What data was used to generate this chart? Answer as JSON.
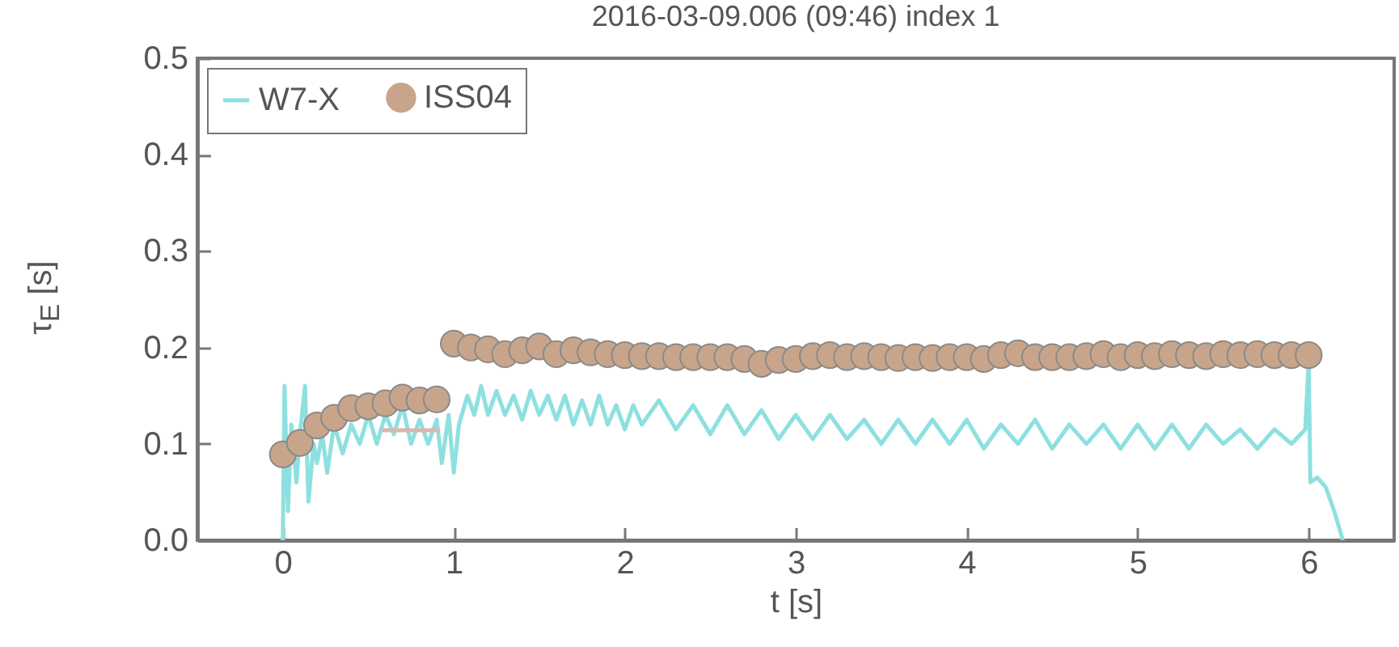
{
  "chart_data": {
    "type": "line",
    "title": "2016-03-09.006 (09:46) index 1",
    "xlabel": "t [s]",
    "ylabel": "τ$_{E}$ [s]",
    "xlim": [
      -0.5,
      6.5
    ],
    "xticks": [
      0,
      1,
      2,
      3,
      4,
      5,
      6
    ],
    "ylim": [
      0,
      0.5
    ],
    "yticks": [
      {
        "value": 0,
        "label": "0.0"
      },
      {
        "value": 0.1,
        "label": "0.1"
      },
      {
        "value": 0.2,
        "label": "0.2"
      },
      {
        "value": 0.3,
        "label": "0.3"
      },
      {
        "value": 0.4,
        "label": "0.4"
      },
      {
        "value": 0.5,
        "label": "0.5"
      }
    ],
    "grid": false,
    "legend": "top left",
    "line_style": "solid",
    "series": [
      {
        "name": "W7-X",
        "color": "#8ee0e0",
        "x": [
          0,
          0.01,
          0.03,
          0.05,
          0.08,
          0.1,
          0.13,
          0.15,
          0.18,
          0.2,
          0.23,
          0.26,
          0.3,
          0.35,
          0.4,
          0.45,
          0.5,
          0.55,
          0.6,
          0.65,
          0.7,
          0.75,
          0.8,
          0.85,
          0.9,
          0.93,
          0.97,
          1.0,
          1.03,
          1.08,
          1.12,
          1.16,
          1.2,
          1.25,
          1.3,
          1.35,
          1.4,
          1.45,
          1.5,
          1.55,
          1.6,
          1.65,
          1.7,
          1.75,
          1.8,
          1.85,
          1.9,
          1.95,
          2.0,
          2.05,
          2.1,
          2.2,
          2.3,
          2.4,
          2.5,
          2.6,
          2.7,
          2.8,
          2.9,
          3.0,
          3.1,
          3.2,
          3.3,
          3.4,
          3.5,
          3.6,
          3.7,
          3.8,
          3.9,
          4.0,
          4.1,
          4.2,
          4.3,
          4.4,
          4.5,
          4.6,
          4.7,
          4.8,
          4.9,
          5.0,
          5.1,
          5.2,
          5.3,
          5.4,
          5.5,
          5.6,
          5.7,
          5.8,
          5.9,
          5.98,
          6.0,
          6.01,
          6.05,
          6.1,
          6.15,
          6.2
        ],
        "values": [
          0,
          0.16,
          0.03,
          0.12,
          0.06,
          0.11,
          0.16,
          0.04,
          0.1,
          0.08,
          0.11,
          0.07,
          0.12,
          0.09,
          0.12,
          0.1,
          0.13,
          0.1,
          0.13,
          0.11,
          0.14,
          0.1,
          0.125,
          0.1,
          0.125,
          0.08,
          0.13,
          0.07,
          0.12,
          0.15,
          0.13,
          0.16,
          0.13,
          0.155,
          0.13,
          0.15,
          0.125,
          0.155,
          0.13,
          0.15,
          0.125,
          0.15,
          0.12,
          0.145,
          0.12,
          0.15,
          0.12,
          0.14,
          0.115,
          0.14,
          0.12,
          0.145,
          0.115,
          0.14,
          0.11,
          0.14,
          0.11,
          0.135,
          0.105,
          0.13,
          0.105,
          0.13,
          0.105,
          0.125,
          0.1,
          0.125,
          0.1,
          0.125,
          0.1,
          0.125,
          0.095,
          0.12,
          0.1,
          0.125,
          0.095,
          0.12,
          0.1,
          0.12,
          0.095,
          0.12,
          0.095,
          0.12,
          0.095,
          0.12,
          0.1,
          0.115,
          0.095,
          0.115,
          0.1,
          0.115,
          0.185,
          0.06,
          0.065,
          0.055,
          0.03,
          0
        ]
      },
      {
        "name": "ISS04",
        "type": "scatter",
        "marker": "circle",
        "color": "#c8a58a",
        "x": [
          0,
          0.1,
          0.2,
          0.3,
          0.4,
          0.5,
          0.6,
          0.7,
          0.8,
          0.9,
          1.0,
          1.1,
          1.2,
          1.3,
          1.4,
          1.5,
          1.6,
          1.7,
          1.8,
          1.9,
          2.0,
          2.1,
          2.2,
          2.3,
          2.4,
          2.5,
          2.6,
          2.7,
          2.8,
          2.9,
          3.0,
          3.1,
          3.2,
          3.3,
          3.4,
          3.5,
          3.6,
          3.7,
          3.8,
          3.9,
          4.0,
          4.1,
          4.2,
          4.3,
          4.4,
          4.5,
          4.6,
          4.7,
          4.8,
          4.9,
          5.0,
          5.1,
          5.2,
          5.3,
          5.4,
          5.5,
          5.6,
          5.7,
          5.8,
          5.9,
          6.0
        ],
        "values": [
          0.089,
          0.101,
          0.119,
          0.127,
          0.137,
          0.139,
          0.142,
          0.148,
          0.145,
          0.146,
          0.204,
          0.2,
          0.198,
          0.193,
          0.197,
          0.201,
          0.193,
          0.197,
          0.195,
          0.193,
          0.192,
          0.191,
          0.191,
          0.19,
          0.19,
          0.19,
          0.19,
          0.188,
          0.183,
          0.187,
          0.188,
          0.191,
          0.192,
          0.19,
          0.191,
          0.19,
          0.189,
          0.19,
          0.189,
          0.19,
          0.19,
          0.188,
          0.192,
          0.194,
          0.19,
          0.19,
          0.19,
          0.191,
          0.193,
          0.19,
          0.192,
          0.191,
          0.193,
          0.192,
          0.191,
          0.193,
          0.192,
          0.193,
          0.192,
          0.192,
          0.192
        ]
      },
      {
        "color": "#d8b8b0",
        "x": [
          0.58,
          0.92
        ],
        "values": [
          0.114,
          0.114
        ]
      }
    ]
  }
}
